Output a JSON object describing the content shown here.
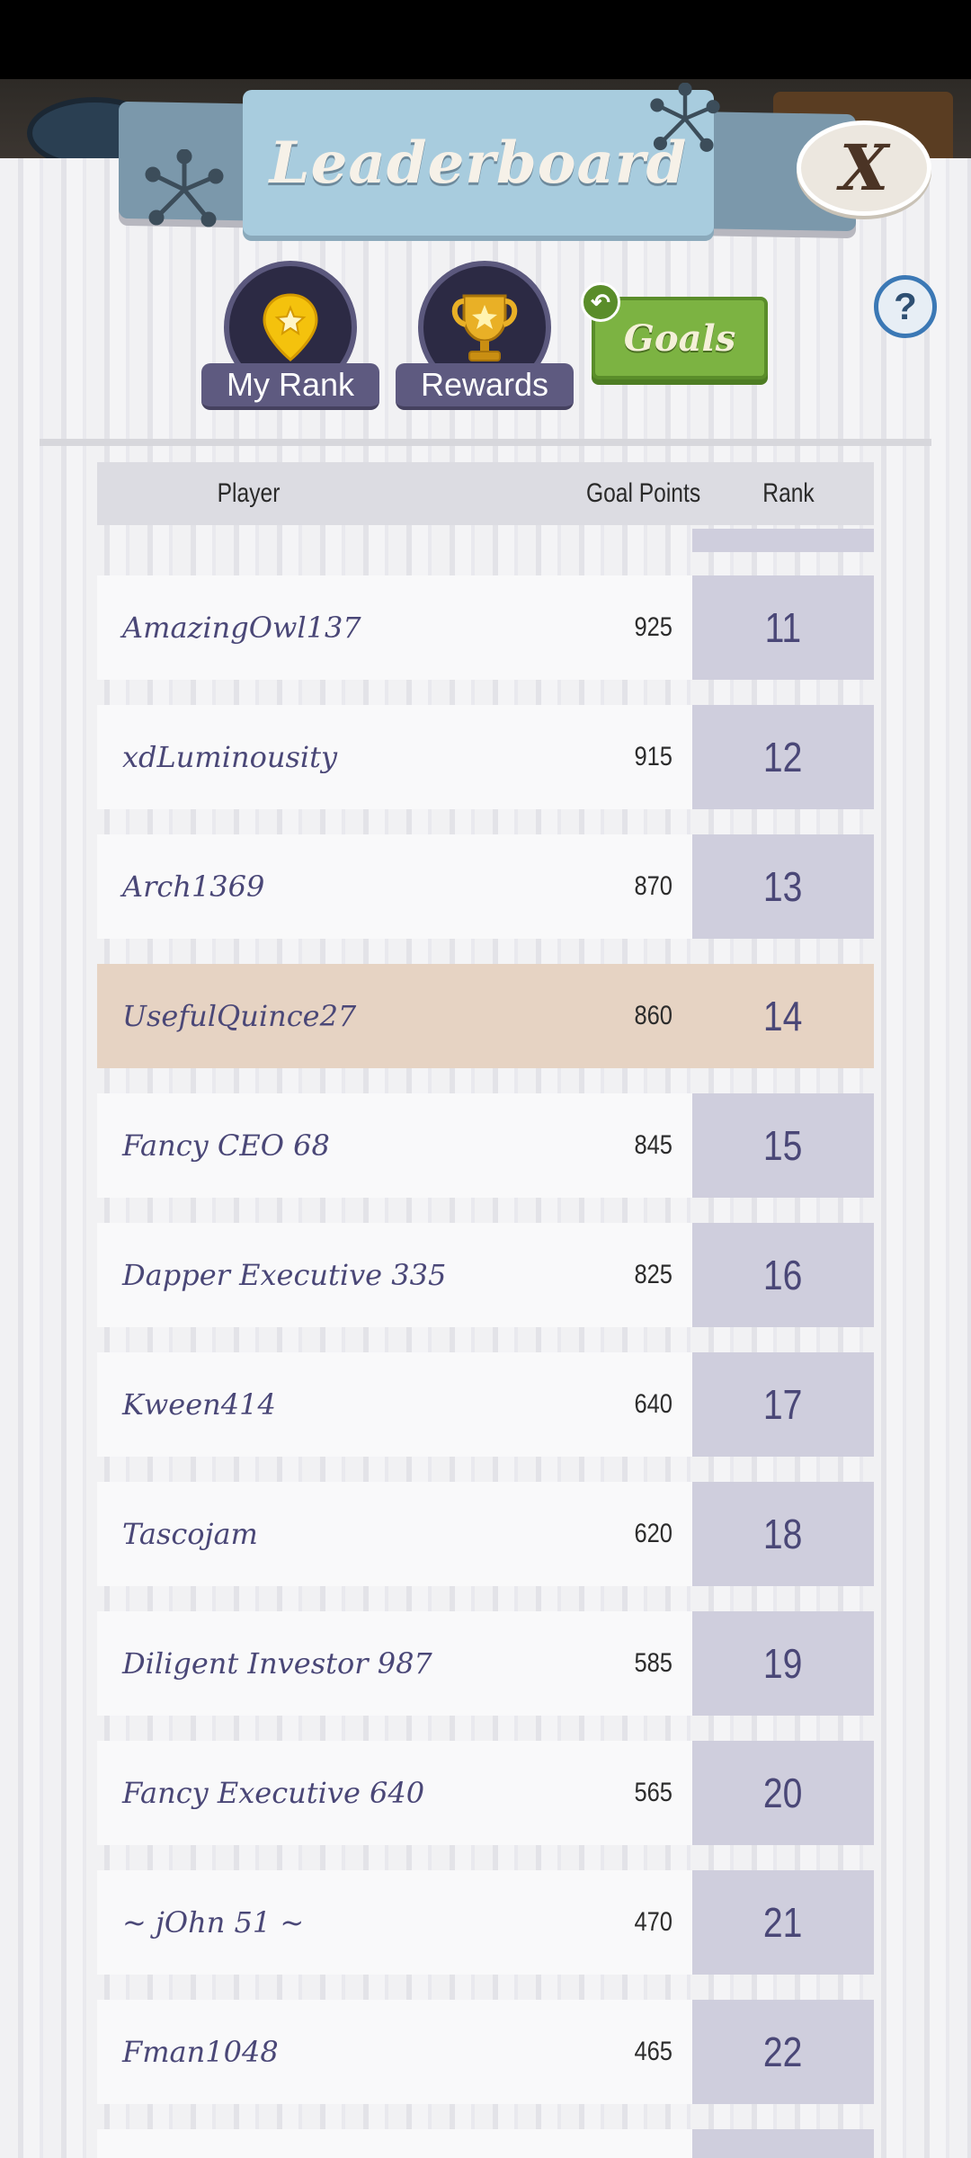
{
  "header": {
    "title": "Leaderboard",
    "close_label": "X",
    "help_label": "?"
  },
  "actions": {
    "my_rank_label": "My Rank",
    "rewards_label": "Rewards",
    "goals_label": "Goals"
  },
  "table": {
    "columns": [
      "Player",
      "Goal Points",
      "Rank"
    ],
    "rows": [
      {
        "player": "AmazingOwl137",
        "points": "925",
        "rank": "11"
      },
      {
        "player": "xdLuminousity",
        "points": "915",
        "rank": "12"
      },
      {
        "player": "Arch1369",
        "points": "870",
        "rank": "13"
      },
      {
        "player": "UsefulQuince27",
        "points": "860",
        "rank": "14",
        "current_user": true
      },
      {
        "player": "Fancy CEO 68",
        "points": "845",
        "rank": "15"
      },
      {
        "player": "Dapper Executive 335",
        "points": "825",
        "rank": "16"
      },
      {
        "player": "Kween414",
        "points": "640",
        "rank": "17"
      },
      {
        "player": "Tascojam",
        "points": "620",
        "rank": "18"
      },
      {
        "player": "Diligent Investor 987",
        "points": "585",
        "rank": "19"
      },
      {
        "player": "Fancy Executive 640",
        "points": "565",
        "rank": "20"
      },
      {
        "player": "~ jOhn 51 ~",
        "points": "470",
        "rank": "21"
      },
      {
        "player": "Fman1048",
        "points": "465",
        "rank": "22"
      }
    ]
  },
  "colors": {
    "highlight_row": "#e6d3c3",
    "rank_cell": "#cfcedd",
    "player_text": "#4a4777",
    "goals_button": "#7cb342"
  }
}
